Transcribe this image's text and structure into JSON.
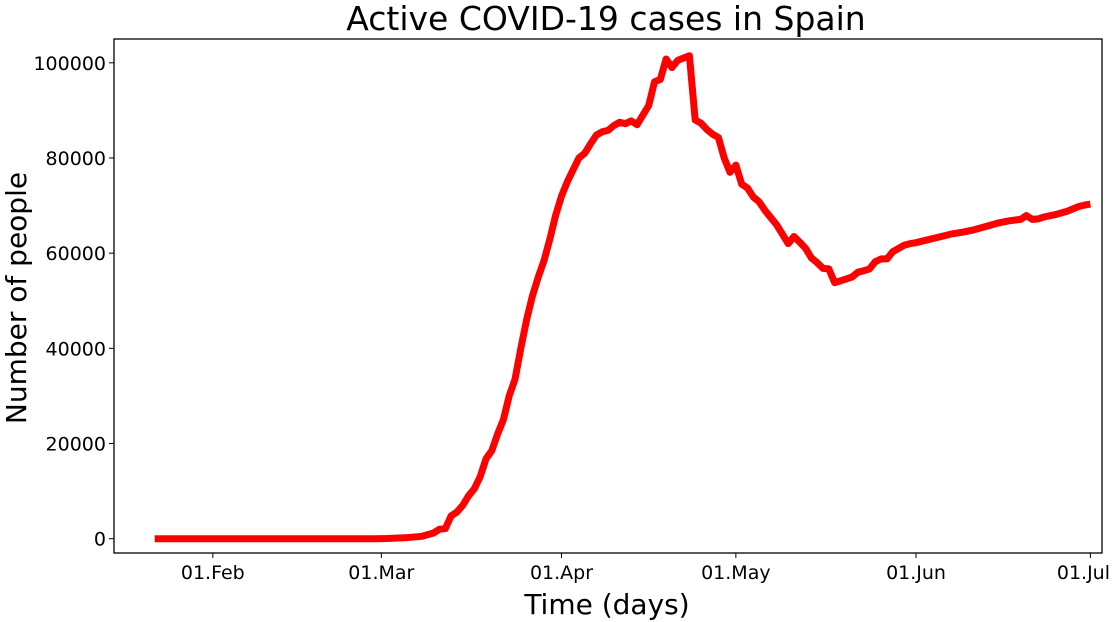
{
  "chart_data": {
    "type": "line",
    "title": "Active COVID-19 cases in Spain",
    "xlabel": "Time (days)",
    "ylabel": "Number of people",
    "xlim": [
      "2020-01-15",
      "2020-07-03"
    ],
    "ylim": [
      -3000,
      105000
    ],
    "xticks": [
      {
        "label": "01.Feb",
        "date": "2020-02-01"
      },
      {
        "label": "01.Mar",
        "date": "2020-03-01"
      },
      {
        "label": "01.Apr",
        "date": "2020-04-01"
      },
      {
        "label": "01.May",
        "date": "2020-05-01"
      },
      {
        "label": "01.Jun",
        "date": "2020-06-01"
      },
      {
        "label": "01.Jul",
        "date": "2020-07-01"
      }
    ],
    "yticks": [
      {
        "label": "0",
        "value": 0
      },
      {
        "label": "20000",
        "value": 20000
      },
      {
        "label": "40000",
        "value": 40000
      },
      {
        "label": "60000",
        "value": 60000
      },
      {
        "label": "80000",
        "value": 80000
      },
      {
        "label": "100000",
        "value": 100000
      }
    ],
    "grid": false,
    "legend": "none",
    "series": [
      {
        "color": "#ff0000",
        "points": [
          [
            "2020-01-22",
            0
          ],
          [
            "2020-02-15",
            0
          ],
          [
            "2020-02-29",
            0
          ],
          [
            "2020-03-02",
            50
          ],
          [
            "2020-03-05",
            200
          ],
          [
            "2020-03-08",
            500
          ],
          [
            "2020-03-10",
            1200
          ],
          [
            "2020-03-11",
            2000
          ],
          [
            "2020-03-12",
            2100
          ],
          [
            "2020-03-13",
            4800
          ],
          [
            "2020-03-14",
            5600
          ],
          [
            "2020-03-15",
            7000
          ],
          [
            "2020-03-16",
            9000
          ],
          [
            "2020-03-17",
            10500
          ],
          [
            "2020-03-18",
            13000
          ],
          [
            "2020-03-19",
            16800
          ],
          [
            "2020-03-20",
            18500
          ],
          [
            "2020-03-21",
            22000
          ],
          [
            "2020-03-22",
            25000
          ],
          [
            "2020-03-23",
            30000
          ],
          [
            "2020-03-24",
            33500
          ],
          [
            "2020-03-25",
            40000
          ],
          [
            "2020-03-26",
            46000
          ],
          [
            "2020-03-27",
            51000
          ],
          [
            "2020-03-28",
            55000
          ],
          [
            "2020-03-29",
            58500
          ],
          [
            "2020-03-30",
            63000
          ],
          [
            "2020-03-31",
            68000
          ],
          [
            "2020-04-01",
            72000
          ],
          [
            "2020-04-02",
            75000
          ],
          [
            "2020-04-03",
            77500
          ],
          [
            "2020-04-04",
            80000
          ],
          [
            "2020-04-05",
            81000
          ],
          [
            "2020-04-06",
            83000
          ],
          [
            "2020-04-07",
            84800
          ],
          [
            "2020-04-08",
            85500
          ],
          [
            "2020-04-09",
            85800
          ],
          [
            "2020-04-10",
            86800
          ],
          [
            "2020-04-11",
            87500
          ],
          [
            "2020-04-12",
            87200
          ],
          [
            "2020-04-13",
            87800
          ],
          [
            "2020-04-14",
            87000
          ],
          [
            "2020-04-15",
            89000
          ],
          [
            "2020-04-16",
            91000
          ],
          [
            "2020-04-17",
            96000
          ],
          [
            "2020-04-18",
            96500
          ],
          [
            "2020-04-19",
            100800
          ],
          [
            "2020-04-20",
            99000
          ],
          [
            "2020-04-21",
            100500
          ],
          [
            "2020-04-22",
            101000
          ],
          [
            "2020-04-23",
            101500
          ],
          [
            "2020-04-24",
            88000
          ],
          [
            "2020-04-25",
            87300
          ],
          [
            "2020-04-26",
            86000
          ],
          [
            "2020-04-27",
            85000
          ],
          [
            "2020-04-28",
            84300
          ],
          [
            "2020-04-29",
            80000
          ],
          [
            "2020-04-30",
            77000
          ],
          [
            "2020-05-01",
            78500
          ],
          [
            "2020-05-02",
            74500
          ],
          [
            "2020-05-03",
            73700
          ],
          [
            "2020-05-04",
            71800
          ],
          [
            "2020-05-05",
            70800
          ],
          [
            "2020-05-06",
            69000
          ],
          [
            "2020-05-07",
            67500
          ],
          [
            "2020-05-08",
            66000
          ],
          [
            "2020-05-09",
            64000
          ],
          [
            "2020-05-10",
            62000
          ],
          [
            "2020-05-11",
            63500
          ],
          [
            "2020-05-12",
            62300
          ],
          [
            "2020-05-13",
            61000
          ],
          [
            "2020-05-14",
            59000
          ],
          [
            "2020-05-15",
            58000
          ],
          [
            "2020-05-16",
            56800
          ],
          [
            "2020-05-17",
            56700
          ],
          [
            "2020-05-18",
            53800
          ],
          [
            "2020-05-19",
            54200
          ],
          [
            "2020-05-20",
            54600
          ],
          [
            "2020-05-21",
            55000
          ],
          [
            "2020-05-22",
            56000
          ],
          [
            "2020-05-23",
            56300
          ],
          [
            "2020-05-24",
            56700
          ],
          [
            "2020-05-25",
            58200
          ],
          [
            "2020-05-26",
            58800
          ],
          [
            "2020-05-27",
            58800
          ],
          [
            "2020-05-28",
            60300
          ],
          [
            "2020-05-29",
            61000
          ],
          [
            "2020-05-30",
            61700
          ],
          [
            "2020-05-31",
            62000
          ],
          [
            "2020-06-01",
            62200
          ],
          [
            "2020-06-03",
            62800
          ],
          [
            "2020-06-05",
            63400
          ],
          [
            "2020-06-07",
            64000
          ],
          [
            "2020-06-09",
            64400
          ],
          [
            "2020-06-11",
            64900
          ],
          [
            "2020-06-13",
            65600
          ],
          [
            "2020-06-15",
            66300
          ],
          [
            "2020-06-17",
            66800
          ],
          [
            "2020-06-19",
            67100
          ],
          [
            "2020-06-20",
            67900
          ],
          [
            "2020-06-21",
            67100
          ],
          [
            "2020-06-22",
            67200
          ],
          [
            "2020-06-23",
            67600
          ],
          [
            "2020-06-25",
            68100
          ],
          [
            "2020-06-27",
            68800
          ],
          [
            "2020-06-28",
            69300
          ],
          [
            "2020-06-29",
            69800
          ],
          [
            "2020-06-30",
            70100
          ],
          [
            "2020-07-01",
            70300
          ]
        ]
      }
    ]
  }
}
